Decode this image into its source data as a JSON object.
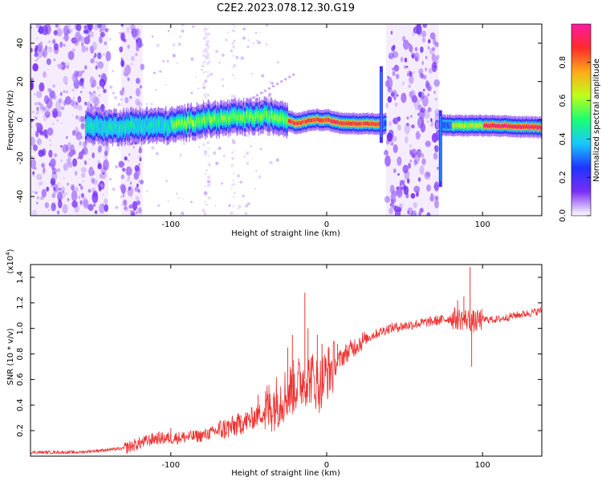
{
  "title": "C2E2.2023.078.12.30.G19",
  "colors": {
    "snr_line": "#ee3333",
    "axis": "#000000",
    "background": "#ffffff"
  },
  "chart_data": [
    {
      "type": "heatmap",
      "xlabel": "Height of straight line (km)",
      "ylabel": "Frequency (Hz)",
      "xlim": [
        -190,
        138
      ],
      "ylim": [
        -50,
        50
      ],
      "x_ticks": [
        -100,
        0,
        100
      ],
      "x_tick_labels": [
        "-100",
        "0",
        "100"
      ],
      "y_ticks": [
        -40,
        -20,
        0,
        20,
        40
      ],
      "y_tick_labels": [
        "-40",
        "-20",
        "0",
        "20",
        "40"
      ],
      "colorbar": {
        "label": "Normalized spectral amplitude",
        "range": [
          0,
          1
        ],
        "ticks": [
          0.0,
          0.2,
          0.4,
          0.6,
          0.8
        ],
        "tick_labels": [
          "0.0",
          "0.2",
          "0.4",
          "0.6",
          "0.8"
        ],
        "colormap": [
          "#ffffff",
          "#7b2ff7",
          "#1f33ff",
          "#19c8ff",
          "#19ff73",
          "#bfff19",
          "#ffaa19",
          "#ff2b2b",
          "#ff1aa0"
        ]
      },
      "ridge": [
        {
          "x": -155,
          "f": -3
        },
        {
          "x": -140,
          "f": -4
        },
        {
          "x": -120,
          "f": -3
        },
        {
          "x": -100,
          "f": -3
        },
        {
          "x": -80,
          "f": 0
        },
        {
          "x": -60,
          "f": 1
        },
        {
          "x": -40,
          "f": 2
        },
        {
          "x": -28,
          "f": 1
        },
        {
          "x": -20,
          "f": -2
        },
        {
          "x": -10,
          "f": 0
        },
        {
          "x": 0,
          "f": 0
        },
        {
          "x": 10,
          "f": -2
        },
        {
          "x": 35,
          "f": -2
        },
        {
          "x": 80,
          "f": -3
        },
        {
          "x": 100,
          "f": -3
        },
        {
          "x": 138,
          "f": -4
        }
      ],
      "noise_bands": [
        [
          -190,
          -140
        ],
        [
          -132,
          -118
        ],
        [
          38,
          72
        ]
      ],
      "grid": false
    },
    {
      "type": "line",
      "xlabel": "Height of straight line (km)",
      "ylabel": "SNR (10 * v/v)",
      "y_multiplier": "(x10",
      "y_multiplier_exp": "4",
      "y_multiplier_close": ")",
      "xlim": [
        -190,
        138
      ],
      "ylim": [
        0,
        1.5
      ],
      "x_ticks": [
        -100,
        0,
        100
      ],
      "x_tick_labels": [
        "-100",
        "0",
        "100"
      ],
      "y_ticks": [
        0.2,
        0.4,
        0.6,
        0.8,
        1.0,
        1.2,
        1.4
      ],
      "y_tick_labels": [
        "0.2",
        "0.4",
        "0.6",
        "0.8",
        "1.0",
        "1.2",
        "1.4"
      ],
      "series": [
        {
          "color": "#ee3333",
          "points": [
            [
              -190,
              0.03
            ],
            [
              -160,
              0.03
            ],
            [
              -150,
              0.04
            ],
            [
              -130,
              0.06
            ],
            [
              -120,
              0.1
            ],
            [
              -110,
              0.14
            ],
            [
              -100,
              0.14
            ],
            [
              -90,
              0.15
            ],
            [
              -80,
              0.16
            ],
            [
              -70,
              0.2
            ],
            [
              -60,
              0.23
            ],
            [
              -50,
              0.28
            ],
            [
              -40,
              0.35
            ],
            [
              -30,
              0.45
            ],
            [
              -20,
              0.55
            ],
            [
              -15,
              0.6
            ],
            [
              -10,
              0.62
            ],
            [
              -5,
              0.55
            ],
            [
              0,
              0.65
            ],
            [
              5,
              0.7
            ],
            [
              10,
              0.78
            ],
            [
              20,
              0.88
            ],
            [
              30,
              0.95
            ],
            [
              40,
              1.0
            ],
            [
              50,
              1.02
            ],
            [
              60,
              1.04
            ],
            [
              70,
              1.06
            ],
            [
              80,
              1.08
            ],
            [
              90,
              1.07
            ],
            [
              95,
              1.05
            ],
            [
              100,
              1.07
            ],
            [
              110,
              1.07
            ],
            [
              120,
              1.1
            ],
            [
              130,
              1.12
            ],
            [
              138,
              1.14
            ]
          ],
          "spikes": [
            {
              "x": -14,
              "y": 1.28
            },
            {
              "x": -25,
              "y": 0.85
            },
            {
              "x": -22,
              "y": 0.95
            },
            {
              "x": -12,
              "y": 1.0
            },
            {
              "x": -6,
              "y": 0.95
            },
            {
              "x": -3,
              "y": 0.88
            },
            {
              "x": 7,
              "y": 0.88
            },
            {
              "x": 92,
              "y": 1.48
            },
            {
              "x": 93,
              "y": 0.7
            },
            {
              "x": 88,
              "y": 1.25
            },
            {
              "x": 84,
              "y": 1.22
            },
            {
              "x": -55,
              "y": 0.32
            },
            {
              "x": -44,
              "y": 0.48
            },
            {
              "x": -100,
              "y": 0.22
            }
          ]
        }
      ],
      "grid": false
    }
  ]
}
